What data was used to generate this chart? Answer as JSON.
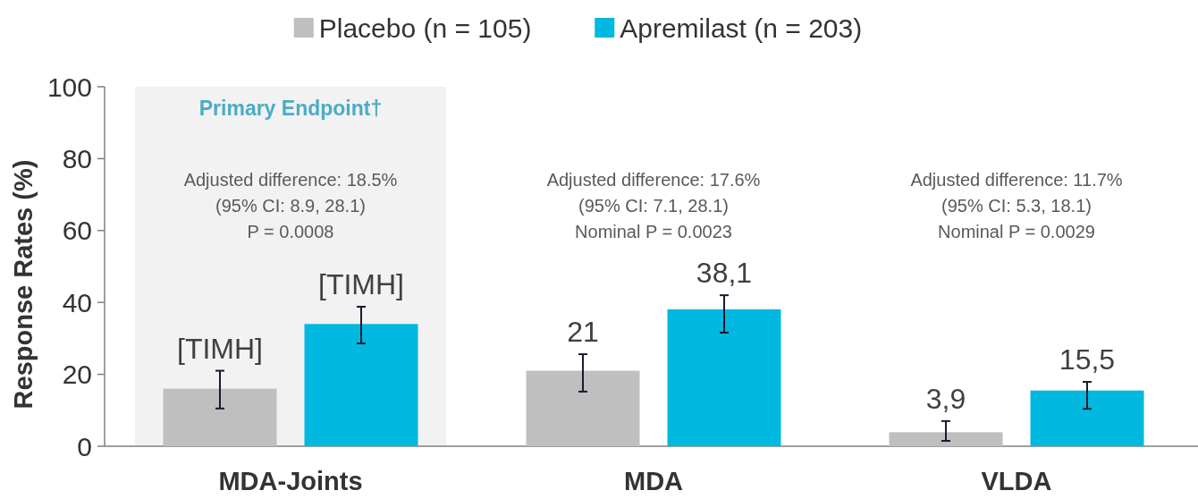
{
  "chart_data": {
    "type": "bar",
    "ylabel": "Response Rates (%)",
    "categories": [
      "MDA-Joints",
      "MDA",
      "VLDA"
    ],
    "series": [
      {
        "name": "Placebo (n = 105)",
        "color": "#bfbfbf",
        "values": [
          16,
          21,
          3.9
        ],
        "errors": [
          [
            10.5,
            21
          ],
          [
            15.2,
            25.6
          ],
          [
            1.5,
            7
          ]
        ],
        "value_labels": [
          "[TIMH]",
          "21",
          "3,9"
        ]
      },
      {
        "name": "Apremilast (n = 203)",
        "color": "#00b8e0",
        "values": [
          34,
          38.1,
          15.5
        ],
        "errors": [
          [
            28.6,
            38.8
          ],
          [
            31.6,
            42
          ],
          [
            10.4,
            17.9
          ]
        ],
        "value_labels": [
          "[TIMH]",
          "38,1",
          "15,5"
        ]
      }
    ],
    "ylim": [
      0,
      100
    ],
    "yticks": [
      0,
      20,
      40,
      60,
      80,
      100
    ],
    "legend": "top",
    "grid": false,
    "bands": [
      {
        "axis": "x",
        "from": "MDA-Joints",
        "to": "MDA-Joints",
        "label": "Primary Endpoint†",
        "color": "#f2f2f2"
      }
    ],
    "annotations": [
      "Adjusted difference: 18.5%\n(95% CI: 8.9, 28.1)\nP = 0.0008",
      "Adjusted difference: 17.6%\n(95% CI: 7.1, 28.1)\nNominal P = 0.0023",
      "Adjusted difference: 11.7%\n(95% CI: 5.3, 18.1)\nNominal P = 0.0029"
    ]
  }
}
